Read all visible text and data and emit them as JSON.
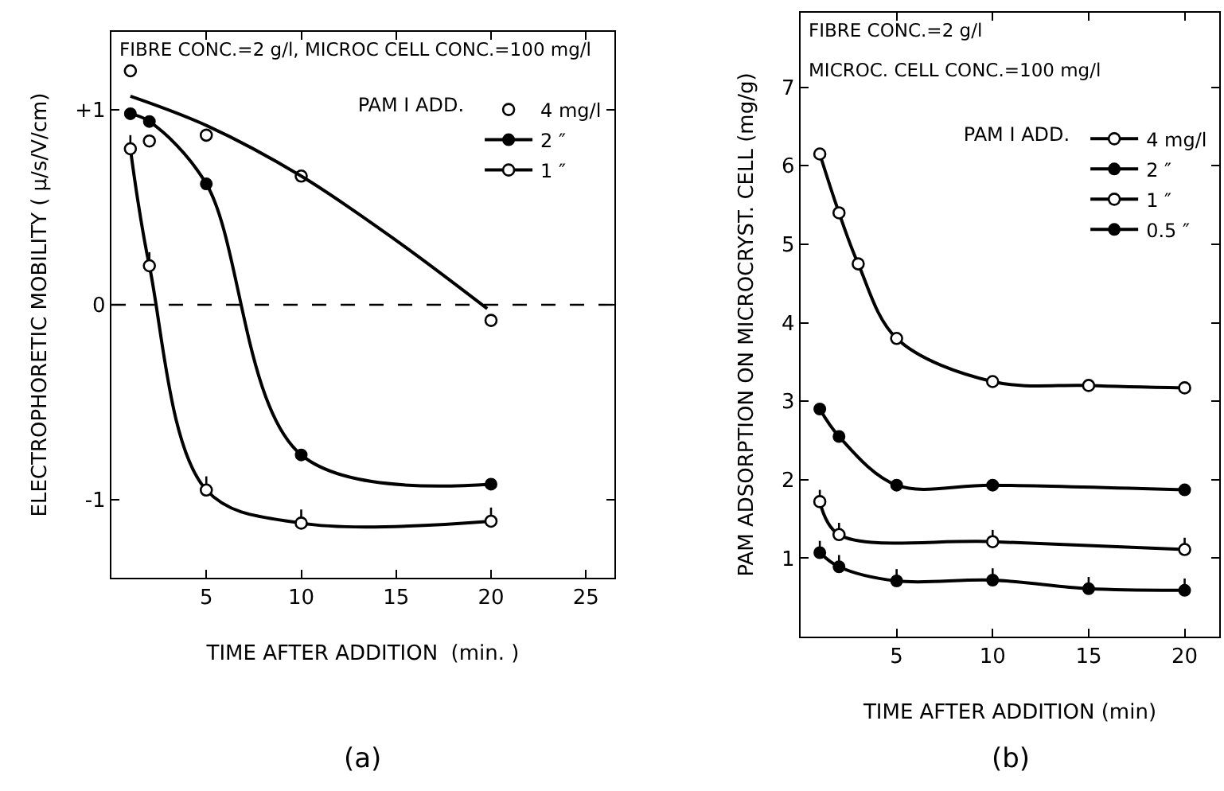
{
  "chart_data": [
    {
      "type": "line",
      "xlabel": "TIME AFTER ADDITION  (min. )",
      "ylabel": "ELECTROPHORETIC MOBILITY ( μ/s/V/cm)",
      "legend_title": "PAM I ADD.",
      "legend": "top right",
      "grid": false,
      "xlim": [
        0,
        26.5
      ],
      "xticks": [
        5,
        10,
        15,
        20,
        25
      ],
      "ylim": [
        -1.4,
        1.4
      ],
      "yticks": [
        {
          "value": 1,
          "label": "+1"
        },
        0,
        -1
      ],
      "annotations": [
        "FIBRE CONC.=2 g/l, MICROC CELL CONC.=100 mg/l",
        "(a)"
      ],
      "ref_lines": [
        {
          "axis": "y",
          "value": 0,
          "line_style": "dashed",
          "color": "#000000"
        }
      ],
      "series": [
        {
          "name": "4 mg/l",
          "type": "scatter",
          "marker": "circle-open",
          "color": "#000000",
          "x": [
            1,
            2,
            5,
            10,
            20
          ],
          "values": [
            1.2,
            0.84,
            0.87,
            0.66,
            -0.08
          ]
        },
        {
          "name": "2 ″",
          "marker": "circle",
          "color": "#000000",
          "x": [
            1,
            2,
            5,
            10,
            20
          ],
          "values": [
            0.98,
            0.94,
            0.62,
            -0.77,
            -0.92
          ]
        },
        {
          "name": "1 ″",
          "marker": "circle-open",
          "color": "#000000",
          "x": [
            1,
            2,
            5,
            10,
            20
          ],
          "values": [
            0.8,
            0.2,
            -0.95,
            -1.12,
            -1.11
          ],
          "errors": [
            [
              0.8,
              0.87
            ],
            [
              0.2,
              0.27
            ],
            [
              -0.95,
              -0.88
            ],
            [
              -1.12,
              -1.05
            ],
            [
              -1.11,
              -1.04
            ]
          ]
        },
        {
          "type": "line",
          "marker": "none",
          "color": "#000000",
          "x": [
            1,
            5,
            10,
            15,
            19.8
          ],
          "values": [
            1.07,
            0.92,
            0.66,
            0.33,
            -0.02
          ]
        }
      ]
    },
    {
      "type": "line",
      "xlabel": "TIME AFTER ADDITION (min)",
      "ylabel": "PAM ADSORPTION ON MICROCRYST. CELL (mg/g)",
      "legend_title": "PAM I ADD.",
      "legend": "top right",
      "grid": false,
      "xlim": [
        0,
        21.8
      ],
      "xticks": [
        5,
        10,
        15,
        20
      ],
      "ylim": [
        0,
        7.95
      ],
      "yticks": [
        1,
        2,
        3,
        4,
        5,
        6,
        7
      ],
      "annotations": [
        "FIBRE CONC.=2 g/l",
        "MICROC. CELL CONC.=100 mg/l",
        "(b)"
      ],
      "series": [
        {
          "name": "4 mg/l",
          "marker": "circle-open",
          "color": "#000000",
          "x": [
            1,
            2,
            3,
            5,
            10,
            15,
            20
          ],
          "values": [
            6.15,
            5.4,
            4.75,
            3.8,
            3.25,
            3.2,
            3.17
          ]
        },
        {
          "name": "2 ″",
          "marker": "circle",
          "color": "#000000",
          "x": [
            1,
            2,
            5,
            10,
            20
          ],
          "values": [
            2.9,
            2.55,
            1.93,
            1.93,
            1.87
          ]
        },
        {
          "name": "1 ″",
          "marker": "circle-open",
          "color": "#000000",
          "x": [
            1,
            2,
            10,
            20
          ],
          "values": [
            1.72,
            1.3,
            1.21,
            1.11
          ],
          "errors": [
            [
              1.72,
              1.87
            ],
            [
              1.3,
              1.45
            ],
            [
              1.21,
              1.36
            ],
            [
              1.11,
              1.26
            ]
          ]
        },
        {
          "name": "0.5 ″",
          "marker": "circle",
          "color": "#000000",
          "x": [
            1,
            2,
            5,
            10,
            15,
            20
          ],
          "values": [
            1.07,
            0.89,
            0.71,
            0.72,
            0.61,
            0.59
          ],
          "errors": [
            [
              1.07,
              1.22
            ],
            [
              0.89,
              1.04
            ],
            [
              0.71,
              0.86
            ],
            [
              0.72,
              0.87
            ],
            [
              0.61,
              0.76
            ],
            [
              0.59,
              0.74
            ]
          ]
        }
      ]
    }
  ]
}
